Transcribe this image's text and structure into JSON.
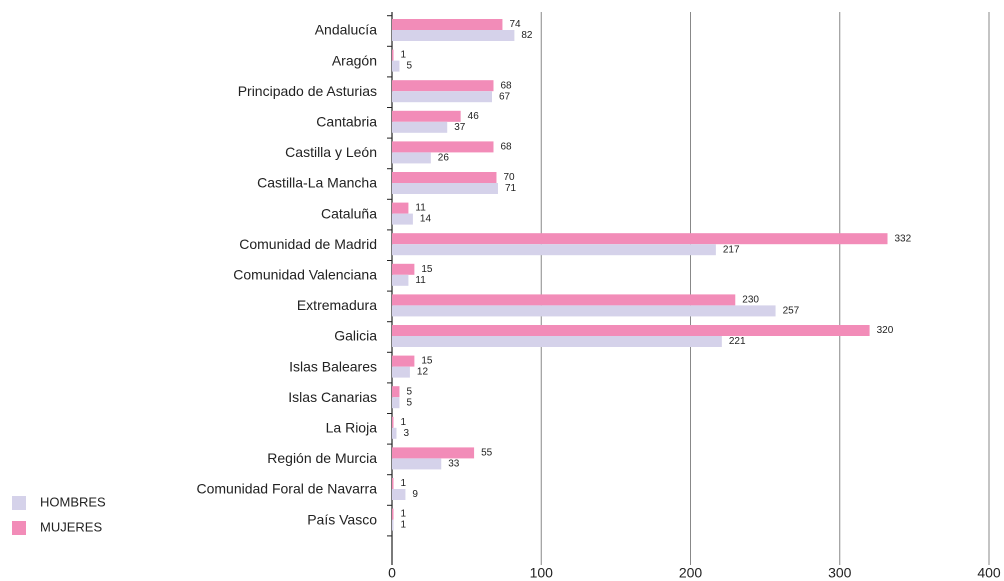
{
  "chart_data": {
    "type": "barh",
    "categories": [
      "Andalucía",
      "Aragón",
      "Principado de Asturias",
      "Cantabria",
      "Castilla y León",
      "Castilla-La Mancha",
      "Cataluña",
      "Comunidad de Madrid",
      "Comunidad Valenciana",
      "Extremadura",
      "Galicia",
      "Islas Baleares",
      "Islas Canarias",
      "La Rioja",
      "Región de Murcia",
      "Comunidad Foral de Navarra",
      "País Vasco"
    ],
    "series": [
      {
        "name": "HOMBRES",
        "color": "#d5d2ea",
        "values": [
          82,
          5,
          67,
          37,
          26,
          71,
          14,
          217,
          11,
          257,
          221,
          12,
          5,
          3,
          33,
          9,
          1
        ]
      },
      {
        "name": "MUJERES",
        "color": "#f28cb8",
        "values": [
          74,
          1,
          68,
          46,
          68,
          70,
          11,
          332,
          15,
          230,
          320,
          15,
          5,
          1,
          55,
          1,
          1
        ]
      }
    ],
    "xlim": [
      0,
      400
    ],
    "xticks": [
      0,
      100,
      200,
      300,
      400
    ],
    "grid": true,
    "legend": "lower left"
  }
}
